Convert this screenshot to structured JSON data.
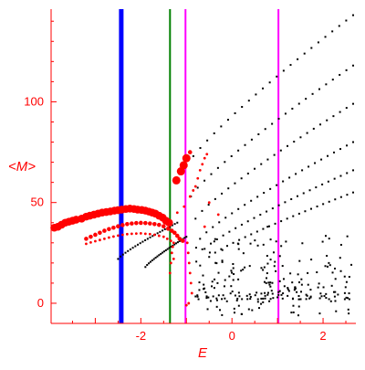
{
  "chart_data": {
    "type": "scatter",
    "xlabel": "E",
    "ylabel": "<M>",
    "xlim": [
      -3.97,
      2.72
    ],
    "ylim": [
      -10,
      146
    ],
    "x_ticks": [
      {
        "value": -2,
        "label": "-2"
      },
      {
        "value": 0,
        "label": "0"
      },
      {
        "value": 2,
        "label": "2"
      }
    ],
    "y_ticks": [
      {
        "value": 0,
        "label": "0"
      },
      {
        "value": 50,
        "label": "50"
      },
      {
        "value": 100,
        "label": "100"
      }
    ],
    "grid": false,
    "vertical_lines": [
      {
        "x": -2.43,
        "color": "#0000ff",
        "weight": "thick"
      },
      {
        "x": -1.36,
        "color": "#008000",
        "weight": "thin"
      },
      {
        "x": -1.02,
        "color": "#ff00ff",
        "weight": "thin"
      },
      {
        "x": 1.02,
        "color": "#ff00ff",
        "weight": "thin"
      }
    ],
    "colors": {
      "axes": "#ff0000",
      "background_points": "#000000",
      "highlighted_points": "#ff0000"
    },
    "series": [
      {
        "color": "#ff0000",
        "size": "large",
        "points": [
          [
            -3.9,
            37.5
          ],
          [
            -3.82,
            38
          ],
          [
            -3.74,
            39
          ],
          [
            -3.66,
            40
          ],
          [
            -3.58,
            40.5
          ],
          [
            -3.5,
            41
          ],
          [
            -3.42,
            41.5
          ],
          [
            -3.3,
            42
          ],
          [
            -3.2,
            43
          ],
          [
            -3.12,
            43.5
          ],
          [
            -3.03,
            44
          ],
          [
            -2.94,
            44.5
          ],
          [
            -2.85,
            45
          ],
          [
            -2.76,
            45.3
          ],
          [
            -2.67,
            45.6
          ],
          [
            -2.58,
            46
          ],
          [
            -2.5,
            46.2
          ],
          [
            -2.42,
            46.5
          ],
          [
            -2.33,
            46.8
          ],
          [
            -2.24,
            47
          ],
          [
            -2.15,
            46.8
          ],
          [
            -2.07,
            46.5
          ],
          [
            -1.98,
            46.3
          ],
          [
            -1.9,
            46
          ],
          [
            -1.82,
            45.5
          ],
          [
            -1.75,
            45
          ],
          [
            -1.68,
            44.5
          ],
          [
            -1.6,
            43.5
          ],
          [
            -1.52,
            42.5
          ],
          [
            -1.45,
            41
          ],
          [
            -1.38,
            40
          ],
          [
            -1.22,
            61
          ],
          [
            -1.12,
            65.5
          ],
          [
            -1.06,
            68.5
          ],
          [
            -1.0,
            72
          ]
        ]
      },
      {
        "color": "#ff0000",
        "size": "medium",
        "points": [
          [
            -3.2,
            32
          ],
          [
            -3.1,
            33
          ],
          [
            -3.0,
            34
          ],
          [
            -2.9,
            35
          ],
          [
            -2.8,
            36
          ],
          [
            -2.7,
            36.8
          ],
          [
            -2.6,
            37.5
          ],
          [
            -2.5,
            38.2
          ],
          [
            -2.4,
            38.8
          ],
          [
            -2.3,
            39.3
          ],
          [
            -2.2,
            39.6
          ],
          [
            -2.1,
            39.8
          ],
          [
            -2.0,
            39.9
          ],
          [
            -1.9,
            39.8
          ],
          [
            -1.8,
            39.6
          ],
          [
            -1.7,
            39.3
          ],
          [
            -1.6,
            38.9
          ],
          [
            -1.5,
            38.2
          ],
          [
            -1.4,
            37
          ],
          [
            -1.32,
            36
          ],
          [
            -1.26,
            35
          ],
          [
            -1.2,
            33.5
          ],
          [
            -1.15,
            32
          ],
          [
            -1.08,
            31
          ],
          [
            -0.92,
            75
          ]
        ]
      },
      {
        "color": "#ff0000",
        "size": "small",
        "points": [
          [
            -3.2,
            29.5
          ],
          [
            -3.1,
            30.2
          ],
          [
            -3.0,
            30.8
          ],
          [
            -2.9,
            31.4
          ],
          [
            -2.8,
            32
          ],
          [
            -2.7,
            32.6
          ],
          [
            -2.6,
            33.1
          ],
          [
            -2.5,
            33.6
          ],
          [
            -2.4,
            34
          ],
          [
            -2.3,
            34.3
          ],
          [
            -2.2,
            34.5
          ],
          [
            -2.1,
            34.6
          ],
          [
            -2.0,
            34.7
          ],
          [
            -1.9,
            34.5
          ],
          [
            -1.8,
            34.3
          ],
          [
            -1.7,
            34
          ],
          [
            -1.6,
            33.5
          ],
          [
            -1.5,
            33
          ],
          [
            -1.42,
            32
          ],
          [
            -1.34,
            31
          ],
          [
            -1.28,
            30
          ],
          [
            -1.36,
            15
          ],
          [
            -1.34,
            20
          ],
          [
            -1.32,
            25
          ],
          [
            -1.3,
            28
          ],
          [
            -1.28,
            22
          ],
          [
            -1.2,
            45
          ],
          [
            -1.05,
            48
          ],
          [
            -0.98,
            30
          ],
          [
            -0.96,
            25
          ],
          [
            -0.94,
            20
          ],
          [
            -0.92,
            15
          ],
          [
            -0.9,
            10
          ],
          [
            -0.88,
            5
          ],
          [
            -0.95,
            0
          ],
          [
            -1.0,
            -1
          ],
          [
            -0.92,
            53
          ],
          [
            -0.85,
            56
          ],
          [
            -0.8,
            58
          ],
          [
            -0.75,
            62
          ],
          [
            -0.7,
            66
          ],
          [
            -0.65,
            69
          ],
          [
            -0.6,
            72
          ],
          [
            -0.55,
            74
          ],
          [
            -0.3,
            44
          ],
          [
            -0.5,
            50
          ],
          [
            -0.6,
            38
          ]
        ]
      }
    ]
  }
}
